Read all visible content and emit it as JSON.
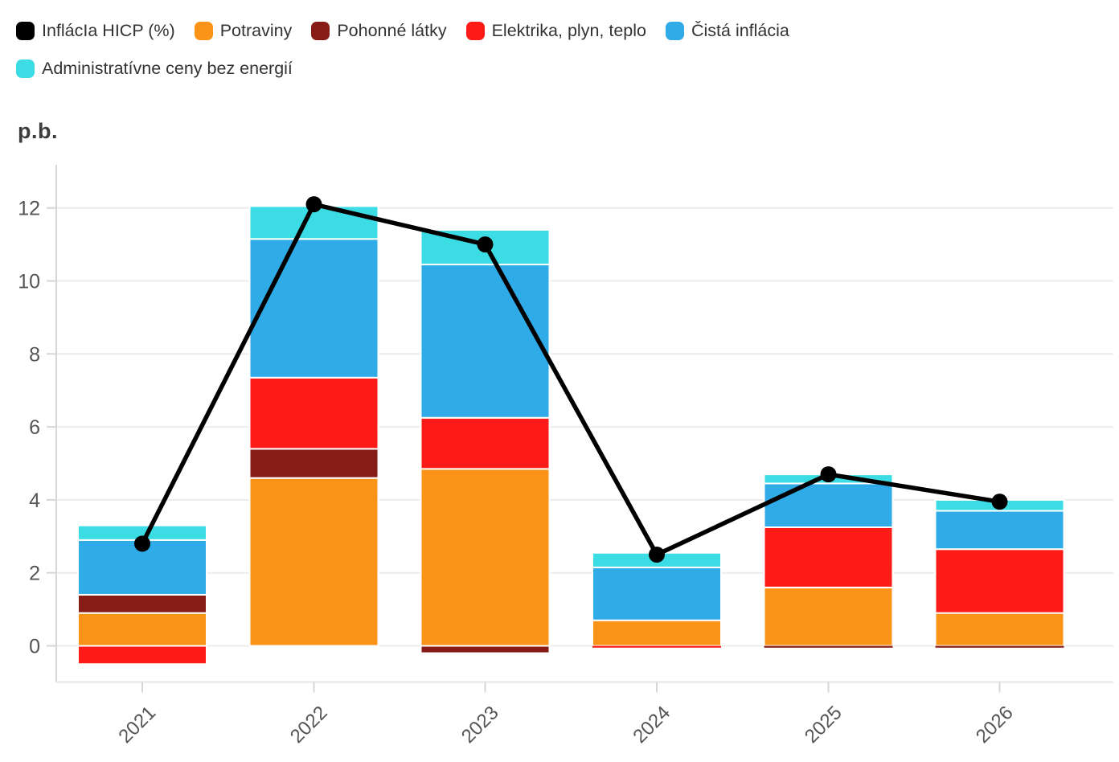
{
  "colors": {
    "background": "#ffffff",
    "grid": "#ebebeb",
    "axis": "#d6d6d6",
    "tick_label": "#555555",
    "legend_text": "#333333",
    "ylabel_text": "#3d3d3d"
  },
  "chart_data": {
    "type": "bar",
    "subtype": "stacked-bars-with-line-overlay",
    "categories": [
      "2021",
      "2022",
      "2023",
      "2024",
      "2025",
      "2026"
    ],
    "series": [
      {
        "name": "Potraviny",
        "color": "#fb9318",
        "values": [
          0.9,
          4.6,
          4.85,
          0.7,
          1.6,
          0.9
        ]
      },
      {
        "name": "Pohonné látky",
        "color": "#871b16",
        "values": [
          0.5,
          0.8,
          -0.2,
          0,
          -0.05,
          -0.05
        ]
      },
      {
        "name": "Elektrika, plyn, teplo",
        "color": "#fc1b17",
        "values": [
          -0.5,
          1.95,
          1.4,
          -0.05,
          1.65,
          1.75
        ]
      },
      {
        "name": "Čistá inflácia",
        "color": "#2fabe8",
        "values": [
          1.5,
          3.8,
          4.2,
          1.45,
          1.2,
          1.05
        ]
      },
      {
        "name": "Administratívne ceny bez energií",
        "color": "#3cdce4",
        "values": [
          0.4,
          0.9,
          0.95,
          0.4,
          0.25,
          0.3
        ]
      }
    ],
    "line_series": {
      "name": "InflácIa HICP (%)",
      "color": "#000000",
      "values": [
        2.8,
        12.1,
        11.0,
        2.5,
        4.7,
        3.95
      ]
    },
    "title": "",
    "xlabel": "",
    "ylabel": "p.b.",
    "yticks": [
      0,
      2,
      4,
      6,
      8,
      10,
      12
    ],
    "ylim": [
      -1,
      13
    ],
    "grid": true,
    "legend_position": "top-left",
    "legend_wrap_after": 5
  }
}
